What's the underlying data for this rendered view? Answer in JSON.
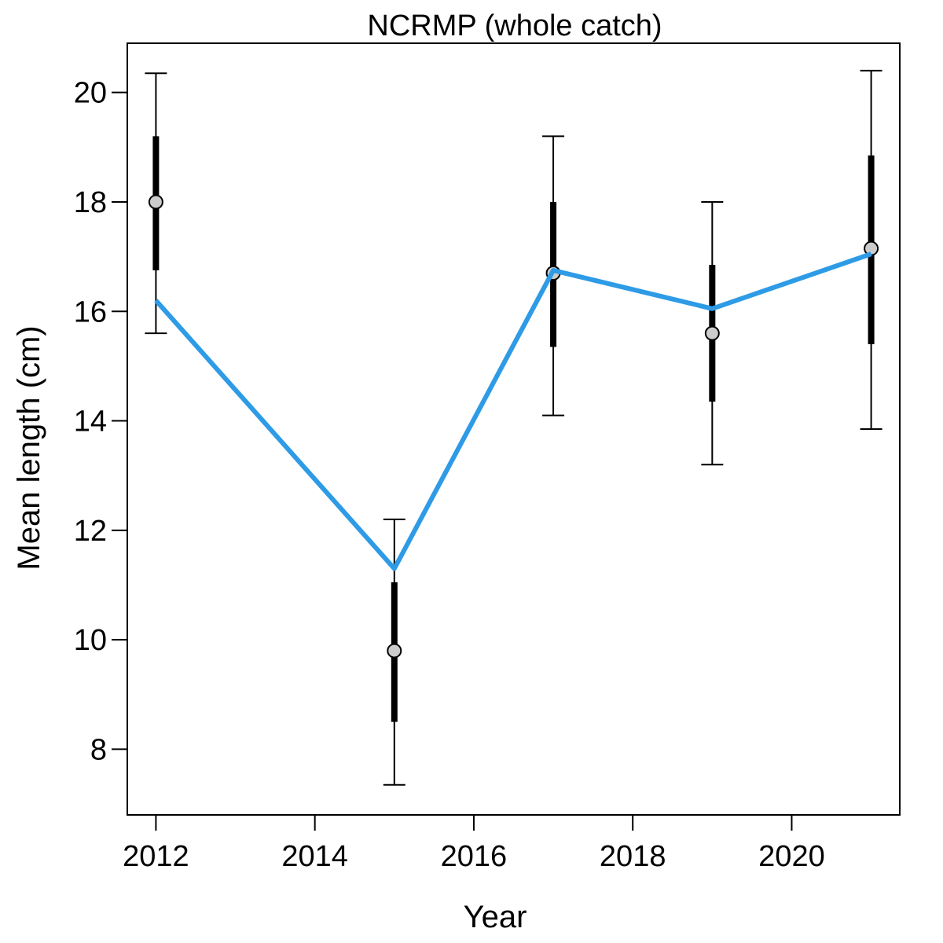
{
  "chart_data": {
    "type": "line",
    "title": "NCRMP (whole catch)",
    "xlabel": "Year",
    "ylabel": "Mean length (cm)",
    "xlim": [
      2011.64,
      2021.36
    ],
    "ylim": [
      6.8,
      20.9
    ],
    "x_ticks": [
      2012,
      2014,
      2016,
      2018,
      2020
    ],
    "x_tick_labels": [
      "2012",
      "2014",
      "2016",
      "2018",
      "2020"
    ],
    "y_ticks": [
      8,
      10,
      12,
      14,
      16,
      18,
      20
    ],
    "y_tick_labels": [
      "8",
      "10",
      "12",
      "14",
      "16",
      "18",
      "20"
    ],
    "grid": false,
    "legend": "none",
    "observed": {
      "years": [
        2012,
        2015,
        2017,
        2019,
        2021
      ],
      "mean": [
        18.0,
        9.8,
        16.7,
        15.6,
        17.15
      ],
      "inner_low": [
        16.75,
        8.5,
        15.35,
        14.35,
        15.4
      ],
      "inner_high": [
        19.2,
        11.05,
        18.0,
        16.85,
        18.85
      ],
      "outer_low": [
        15.6,
        7.35,
        14.1,
        13.2,
        13.85
      ],
      "outer_high": [
        20.35,
        12.2,
        19.2,
        18.0,
        20.4
      ]
    },
    "expected": {
      "years": [
        2012,
        2015,
        2017,
        2019,
        2021
      ],
      "values": [
        16.2,
        11.3,
        16.75,
        16.05,
        17.05
      ]
    },
    "colors": {
      "expected_line": "#2E9BE6",
      "point_fill": "#CCCCCC",
      "error_bar": "#000000"
    }
  }
}
